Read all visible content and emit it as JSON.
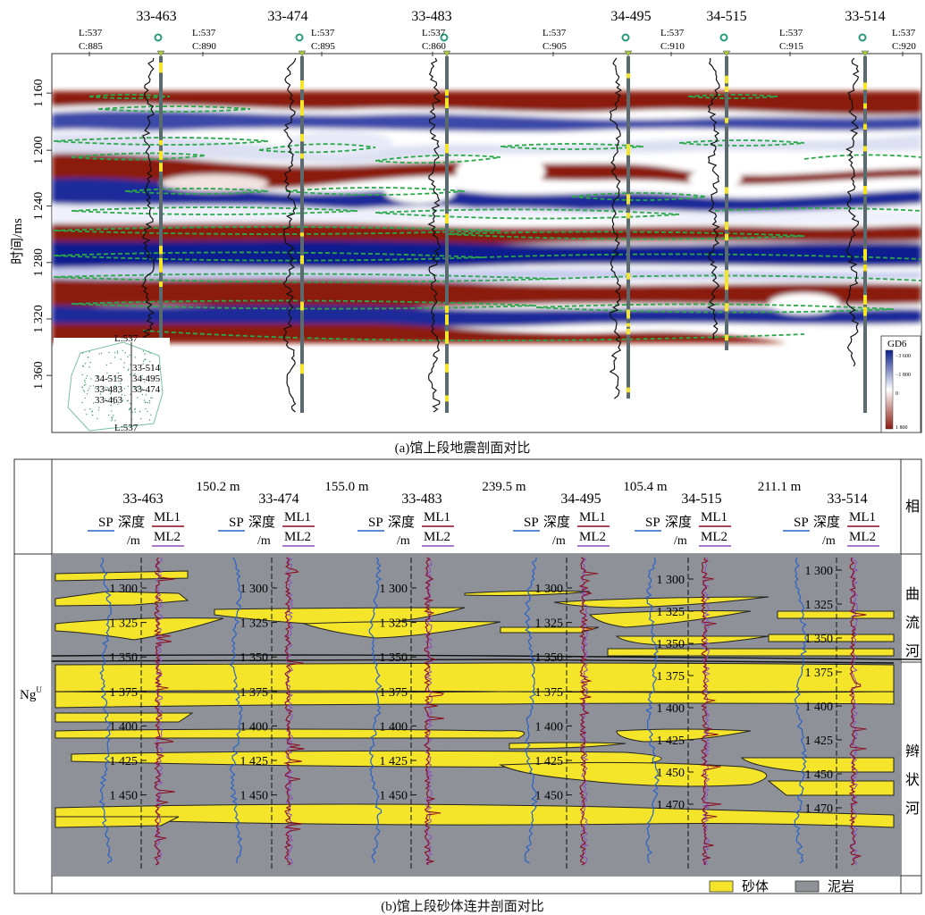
{
  "panel_a": {
    "caption": "(a)馆上段地震剖面对比",
    "ylabel": "时间/ms",
    "yticks": [
      "1 160",
      "1 200",
      "1 240",
      "1 280",
      "1 320",
      "1 360"
    ],
    "wells": [
      {
        "name": "33-463"
      },
      {
        "name": "33-474"
      },
      {
        "name": "33-483"
      },
      {
        "name": "34-495"
      },
      {
        "name": "34-515"
      },
      {
        "name": "33-514"
      }
    ],
    "trace_labels": [
      {
        "l": "L:537",
        "c": "C:885"
      },
      {
        "l": "L:537",
        "c": "C:890"
      },
      {
        "l": "L:537",
        "c": "C:895"
      },
      {
        "l": "L:537",
        "c": "C:860"
      },
      {
        "l": "L:537",
        "c": "C:905"
      },
      {
        "l": "L:537",
        "c": "C:910"
      },
      {
        "l": "L:537",
        "c": "C:915"
      },
      {
        "l": "L:537",
        "c": "C:920"
      }
    ],
    "inset": {
      "top_label": "L:537",
      "bottom_label": "L:537",
      "wells": [
        "33-514",
        "34-515",
        "34-495",
        "33-483",
        "33-474",
        "33-463"
      ]
    },
    "colorbar": {
      "title": "GD6",
      "ticks": [
        "−3 600",
        "−1 800",
        "0",
        "1 800"
      ],
      "colors": [
        "#0a1e8c",
        "#ffffff",
        "#8b1a10"
      ]
    }
  },
  "panel_b": {
    "caption": "(b)馆上段砂体连井剖面对比",
    "spacings": [
      "150.2 m",
      "155.0 m",
      "239.5 m",
      "105.4 m",
      "211.1 m"
    ],
    "header": {
      "sp": "SP",
      "depth": "深度",
      "depth_unit": "/m",
      "ml1": "ML1",
      "ml2": "ML2",
      "facies": "相"
    },
    "wells": [
      {
        "name": "33-463",
        "depths": [
          "1 300",
          "1 325",
          "1 350",
          "1 375",
          "1 400",
          "1 425",
          "1 450"
        ]
      },
      {
        "name": "33-474",
        "depths": [
          "1 300",
          "1 325",
          "1 350",
          "1 375",
          "1 400",
          "1 425",
          "1 450"
        ]
      },
      {
        "name": "33-483",
        "depths": [
          "1 300",
          "1 325",
          "1 350",
          "1 375",
          "1 400",
          "1 425",
          "1 450"
        ]
      },
      {
        "name": "34-495",
        "depths": [
          "1 300",
          "1 325",
          "1 350",
          "1 375",
          "1 400",
          "1 425",
          "1 450"
        ]
      },
      {
        "name": "34-515",
        "depths": [
          "1 300",
          "1 325",
          "1 350",
          "1 375",
          "1 400",
          "1 425",
          "1 450",
          "1 470"
        ]
      },
      {
        "name": "33-514",
        "depths": [
          "1 300",
          "1 325",
          "1 350",
          "1 375",
          "1 400",
          "1 425",
          "1 450",
          "1 470"
        ]
      }
    ],
    "formation": "Ng",
    "formation_sup": "U",
    "facies_upper": [
      "曲",
      "流",
      "河"
    ],
    "facies_lower": [
      "辫",
      "状",
      "河"
    ],
    "legend": [
      {
        "label": "砂体",
        "color": "#f5e52a"
      },
      {
        "label": "泥岩",
        "color": "#8e9197"
      }
    ],
    "colors": {
      "sand": "#f5e52a",
      "mud": "#8e9197",
      "sp": "#2a62c8",
      "ml1": "#8b0a1e",
      "ml2": "#8a4fc0"
    }
  }
}
